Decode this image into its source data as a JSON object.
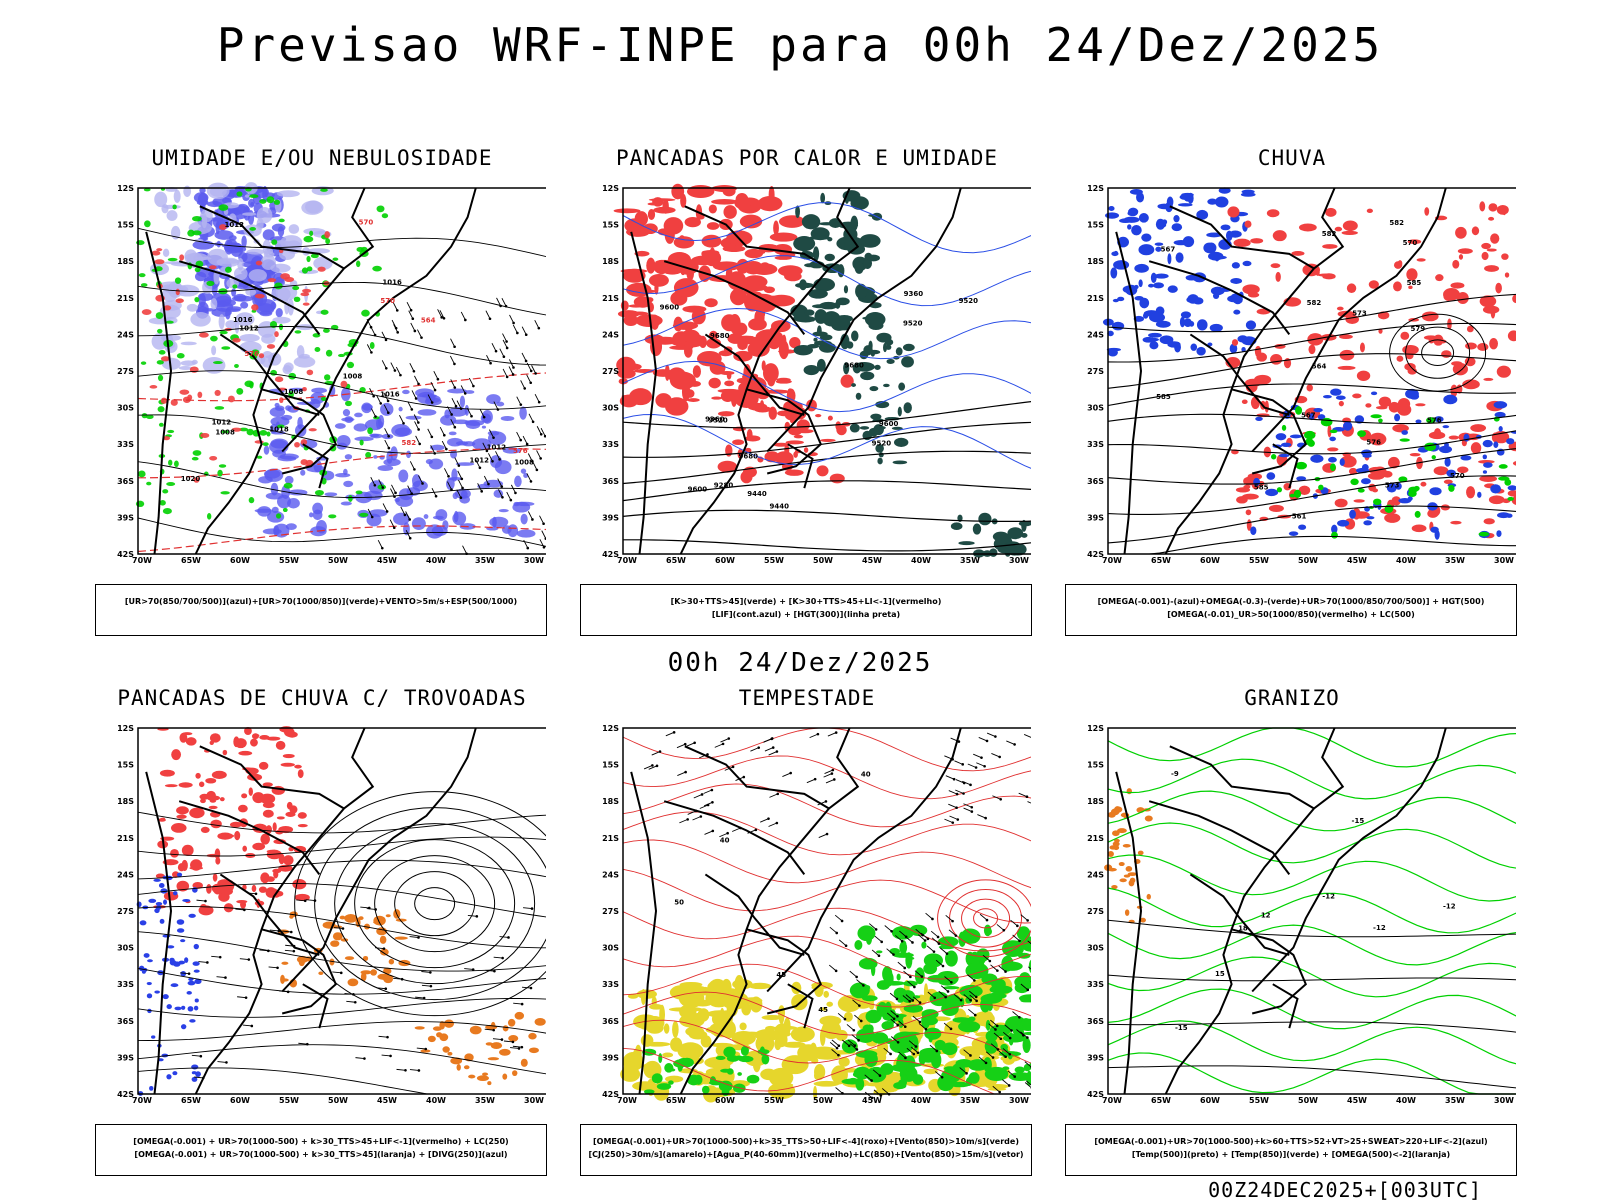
{
  "header": {
    "title": "Previsao WRF-INPE  para 00h 24/Dez/2025",
    "mid_title": "00h 24/Dez/2025",
    "footer": "00Z24DEC2025+[003UTC]"
  },
  "axes": {
    "lat_ticks": [
      "12S",
      "15S",
      "18S",
      "21S",
      "24S",
      "27S",
      "30S",
      "33S",
      "36S",
      "39S",
      "42S"
    ],
    "lon_ticks": [
      "70W",
      "65W",
      "60W",
      "55W",
      "50W",
      "45W",
      "40W",
      "35W",
      "30W"
    ]
  },
  "colors": {
    "blue_dark": "#5a5aef",
    "blue_light": "#b4b4f0",
    "green": "#00d000",
    "red": "#f04040",
    "dark_teal": "#1f4a44",
    "orange": "#e87a20",
    "yellow": "#e6d62c",
    "bright_green": "#16d016",
    "contour_black": "#000000",
    "contour_red": "#e03030",
    "contour_blue": "#2a4ee6"
  },
  "panels": [
    {
      "title": "UMIDADE E/OU NEBULOSIDADE",
      "legend": [
        "[UR>70(850/700/500)](azul)+[UR>70(1000/850)](verde)+VENTO>5m/s+ESP(500/1000)"
      ],
      "labels": [
        "1012",
        "1008",
        "1016",
        "1016",
        "1016",
        "1018",
        "1012",
        "1020",
        "1012",
        "1008",
        "1012",
        "1008",
        "1008",
        "1012",
        "570",
        "576",
        "570",
        "564",
        "576",
        "582"
      ]
    },
    {
      "title": "PANCADAS POR CALOR E UMIDADE",
      "legend": [
        "[K>30+TTS>45](verde) + [K>30+TTS>45+LI<-1](vermelho)",
        "[LIF](cont.azul) + [HGT(300)](linha preta)"
      ],
      "labels": [
        "9600",
        "9520",
        "9680",
        "9680",
        "9680",
        "9600",
        "9520",
        "9440",
        "9360",
        "9280",
        "9360",
        "9440",
        "9520",
        "9600",
        "9520"
      ]
    },
    {
      "title": "CHUVA",
      "legend": [
        "[OMEGA(-0.001)-(azul)+OMEGA(-0.3)-(verde)+UR>70(1000/850/700/500)] + HGT(500)",
        "[OMEGA(-0.01)_UR>50(1000/850)(vermelho) + LC(500)"
      ],
      "labels": [
        "582",
        "585",
        "582",
        "585",
        "585",
        "582",
        "579",
        "576",
        "573",
        "570",
        "567",
        "564",
        "561",
        "576",
        "573",
        "570",
        "567"
      ]
    },
    {
      "title": "PANCADAS DE CHUVA C/ TROVOADAS",
      "legend": [
        "[OMEGA(-0.001) + UR>70(1000-500) + k>30_TTS>45+LIF<-1](vermelho) + LC(250)",
        "[OMEGA(-0.001) + UR>70(1000-500) + k>30_TTS>45](laranja) + [DIVG(250)](azul)"
      ],
      "labels": []
    },
    {
      "title": "TEMPESTADE",
      "legend": [
        "[OMEGA(-0.001)+UR>70(1000-500)+k>35_TTS>50+LIF<-4](roxo)+[Vento(850)>10m/s](verde)",
        "[CJ(250)>30m/s](amarelo)+[Agua_P(40-60mm)](vermelho)+LC(850)+[Vento(850)>15m/s](vetor)"
      ],
      "labels": [
        "40",
        "45",
        "50",
        "45",
        "40"
      ]
    },
    {
      "title": "GRANIZO",
      "legend": [
        "[OMEGA(-0.001)+UR>70(1000-500)+k>60+TTS>52+VT>25+SWEAT>220+LIF<-2](azul)",
        "[Temp(500)](preto) + [Temp(850)](verde) + [OMEGA(500)<-2](laranja)"
      ],
      "labels": [
        "-12",
        "-12",
        "-12",
        "-9",
        "-15",
        "-15",
        "18",
        "15",
        "12"
      ]
    }
  ]
}
